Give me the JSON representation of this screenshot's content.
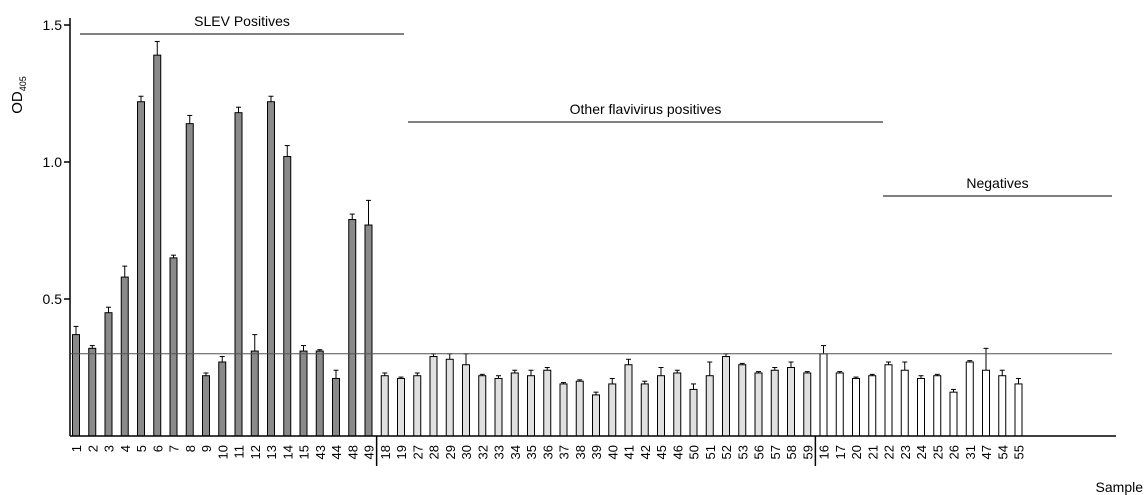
{
  "chart_data": {
    "type": "bar",
    "title": "",
    "ylabel": "OD",
    "ylabel_subscript": "405",
    "xlabel": "Sample",
    "ylim": [
      0,
      1.5
    ],
    "yticks": [
      0.5,
      1.0,
      1.5
    ],
    "ytick_labels": [
      "0.5",
      "1.0",
      "1.5"
    ],
    "cutoff": 0.3,
    "groups": [
      {
        "label": "SLEV Positives",
        "color": "#8a8a8a",
        "categories": [
          "1",
          "2",
          "3",
          "4",
          "5",
          "6",
          "7",
          "8",
          "9",
          "10",
          "11",
          "12",
          "13",
          "14",
          "15",
          "43",
          "44",
          "48",
          "49"
        ],
        "values": [
          0.37,
          0.32,
          0.45,
          0.58,
          1.22,
          1.39,
          0.65,
          1.14,
          0.22,
          0.27,
          1.18,
          0.31,
          1.22,
          1.02,
          0.31,
          0.31,
          0.21,
          0.79,
          0.77
        ],
        "errors": [
          0.03,
          0.01,
          0.02,
          0.04,
          0.02,
          0.05,
          0.01,
          0.03,
          0.01,
          0.02,
          0.02,
          0.06,
          0.02,
          0.04,
          0.02,
          0.005,
          0.03,
          0.02,
          0.09
        ]
      },
      {
        "label": "Other flavivirus positives",
        "color": "#e0e0e0",
        "categories": [
          "18",
          "19",
          "27",
          "28",
          "29",
          "30",
          "32",
          "33",
          "34",
          "35",
          "36",
          "37",
          "38",
          "39",
          "40",
          "41",
          "42",
          "45",
          "46",
          "50",
          "51",
          "52",
          "53",
          "56",
          "57",
          "58",
          "59"
        ],
        "values": [
          0.22,
          0.21,
          0.22,
          0.29,
          0.28,
          0.26,
          0.22,
          0.21,
          0.23,
          0.22,
          0.24,
          0.19,
          0.2,
          0.15,
          0.19,
          0.26,
          0.19,
          0.22,
          0.23,
          0.17,
          0.22,
          0.29,
          0.26,
          0.23,
          0.24,
          0.25,
          0.23
        ],
        "errors": [
          0.01,
          0.005,
          0.01,
          0.01,
          0.02,
          0.04,
          0.005,
          0.01,
          0.01,
          0.02,
          0.01,
          0.005,
          0.005,
          0.01,
          0.02,
          0.02,
          0.01,
          0.03,
          0.01,
          0.02,
          0.05,
          0.01,
          0.005,
          0.005,
          0.01,
          0.02,
          0.005
        ]
      },
      {
        "label": "Negatives",
        "color": "#ffffff",
        "categories": [
          "16",
          "17",
          "20",
          "21",
          "22",
          "23",
          "24",
          "25",
          "26",
          "31",
          "47",
          "54",
          "55"
        ],
        "values": [
          0.3,
          0.23,
          0.21,
          0.22,
          0.26,
          0.24,
          0.21,
          0.22,
          0.16,
          0.27,
          0.24,
          0.22,
          0.19
        ],
        "errors": [
          0.03,
          0.005,
          0.005,
          0.005,
          0.01,
          0.03,
          0.01,
          0.005,
          0.01,
          0.005,
          0.08,
          0.02,
          0.02
        ]
      }
    ]
  }
}
